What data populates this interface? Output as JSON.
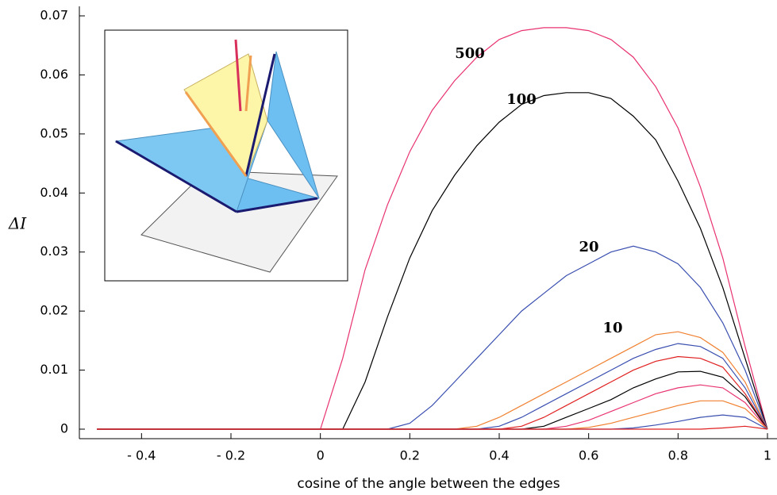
{
  "chart_data": {
    "type": "line",
    "x_label": "cosine of the angle between the edges",
    "y_label": "ΔI",
    "x": [
      -0.5,
      0,
      0.05,
      0.1,
      0.15,
      0.2,
      0.25,
      0.3,
      0.35,
      0.4,
      0.45,
      0.5,
      0.55,
      0.6,
      0.65,
      0.7,
      0.75,
      0.8,
      0.85,
      0.9,
      0.95,
      1
    ],
    "series": [
      {
        "name": "500",
        "color": "#e8336f",
        "values": [
          0,
          0,
          0.012,
          0.027,
          0.038,
          0.047,
          0.054,
          0.059,
          0.063,
          0.066,
          0.0675,
          0.068,
          0.068,
          0.0675,
          0.066,
          0.063,
          0.058,
          0.051,
          0.041,
          0.029,
          0.014,
          0
        ]
      },
      {
        "name": "100",
        "color": "#000000",
        "values": [
          0,
          0,
          0,
          0.008,
          0.019,
          0.029,
          0.037,
          0.043,
          0.048,
          0.052,
          0.055,
          0.0565,
          0.057,
          0.057,
          0.056,
          0.053,
          0.049,
          0.042,
          0.034,
          0.024,
          0.012,
          0
        ]
      },
      {
        "name": "20",
        "color": "#3a4fb0",
        "values": [
          0,
          0,
          0,
          0,
          0,
          0.001,
          0.004,
          0.008,
          0.012,
          0.016,
          0.02,
          0.023,
          0.026,
          0.028,
          0.03,
          0.031,
          0.03,
          0.028,
          0.024,
          0.018,
          0.01,
          0
        ]
      },
      {
        "name": "10",
        "color": "#f08030",
        "values": [
          0,
          0,
          0,
          0,
          0,
          0,
          0,
          0,
          0.0005,
          0.002,
          0.004,
          0.006,
          0.008,
          0.01,
          0.012,
          0.014,
          0.016,
          0.0165,
          0.0155,
          0.013,
          0.008,
          0
        ]
      },
      {
        "color": "#3a4fb0",
        "values": [
          0,
          0,
          0,
          0,
          0,
          0,
          0,
          0,
          0,
          0.0005,
          0.002,
          0.004,
          0.006,
          0.008,
          0.01,
          0.012,
          0.0135,
          0.0145,
          0.014,
          0.012,
          0.007,
          0
        ]
      },
      {
        "color": "#e02020",
        "values": [
          0,
          0,
          0,
          0,
          0,
          0,
          0,
          0,
          0,
          0,
          0.0005,
          0.002,
          0.004,
          0.006,
          0.008,
          0.01,
          0.0115,
          0.0123,
          0.012,
          0.0105,
          0.006,
          0
        ]
      },
      {
        "color": "#000000",
        "values": [
          0,
          0,
          0,
          0,
          0,
          0,
          0,
          0,
          0,
          0,
          0,
          0.0005,
          0.002,
          0.0035,
          0.005,
          0.007,
          0.0085,
          0.0097,
          0.0098,
          0.0088,
          0.0055,
          0
        ]
      },
      {
        "color": "#e8336f",
        "values": [
          0,
          0,
          0,
          0,
          0,
          0,
          0,
          0,
          0,
          0,
          0,
          0,
          0.0005,
          0.0015,
          0.003,
          0.0045,
          0.006,
          0.007,
          0.0075,
          0.007,
          0.0045,
          0
        ]
      },
      {
        "color": "#f08030",
        "values": [
          0,
          0,
          0,
          0,
          0,
          0,
          0,
          0,
          0,
          0,
          0,
          0,
          0,
          0.0003,
          0.001,
          0.002,
          0.003,
          0.004,
          0.0048,
          0.0048,
          0.0035,
          0
        ]
      },
      {
        "color": "#3a4fb0",
        "values": [
          0,
          0,
          0,
          0,
          0,
          0,
          0,
          0,
          0,
          0,
          0,
          0,
          0,
          0,
          0,
          0.0002,
          0.0007,
          0.0013,
          0.002,
          0.0024,
          0.002,
          0
        ]
      },
      {
        "color": "#e02020",
        "values": [
          0,
          0,
          0,
          0,
          0,
          0,
          0,
          0,
          0,
          0,
          0,
          0,
          0,
          0,
          0,
          0,
          0,
          0,
          0,
          0.0002,
          0.0005,
          0
        ]
      }
    ],
    "xlim": [
      -0.5,
      1
    ],
    "ylim": [
      0,
      0.07
    ],
    "xticks": [
      {
        "value": -0.4,
        "label": "- 0.4"
      },
      {
        "value": -0.2,
        "label": "- 0.2"
      },
      0,
      0.2,
      0.4,
      0.6,
      0.8,
      1
    ],
    "yticks": [
      0,
      0.01,
      0.02,
      0.03,
      0.04,
      0.05,
      0.06,
      0.07
    ]
  }
}
